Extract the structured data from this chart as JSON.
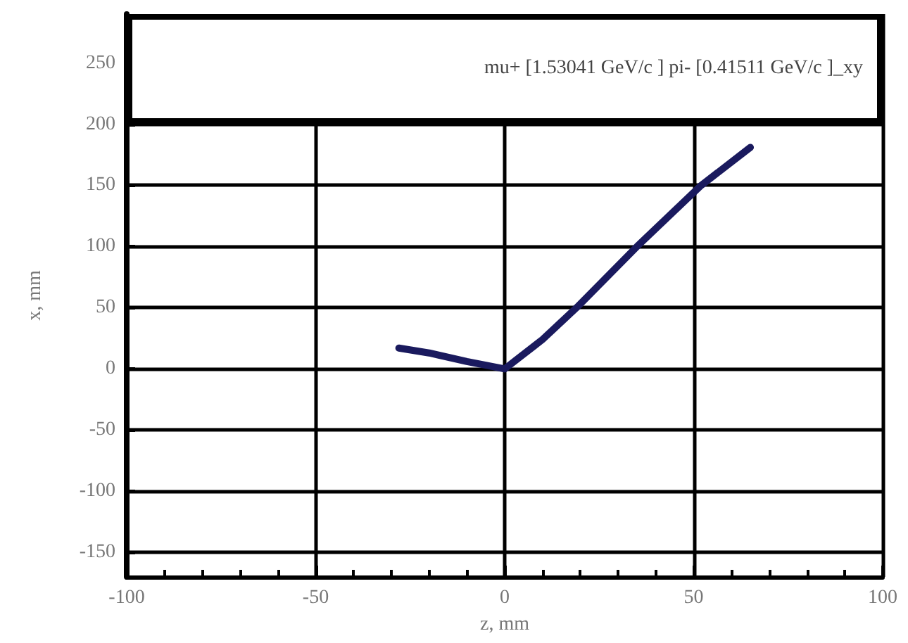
{
  "chart_data": {
    "type": "line",
    "title": "mu+ [1.53041 GeV/c ]  pi- [0.41511 GeV/c ]_xy",
    "xlabel": "z, mm",
    "ylabel": "x, mm",
    "series": [
      {
        "color": "#1a1a5e",
        "x": [
          -28,
          -20,
          -10,
          0
        ],
        "values": [
          17,
          13,
          6,
          0
        ]
      },
      {
        "color": "#1a1a5e",
        "x": [
          0,
          10,
          19,
          35,
          52,
          65
        ],
        "values": [
          0,
          24,
          50,
          100,
          150,
          181
        ]
      }
    ],
    "xlim": [
      -100,
      100
    ],
    "xticks": [
      -100,
      -50,
      0,
      50,
      100
    ],
    "ylim": [
      -170,
      290
    ],
    "yticks": [
      -150,
      -100,
      -50,
      0,
      50,
      100,
      150,
      200,
      250
    ],
    "grid": true,
    "marker": "none",
    "line_style": "solid"
  }
}
